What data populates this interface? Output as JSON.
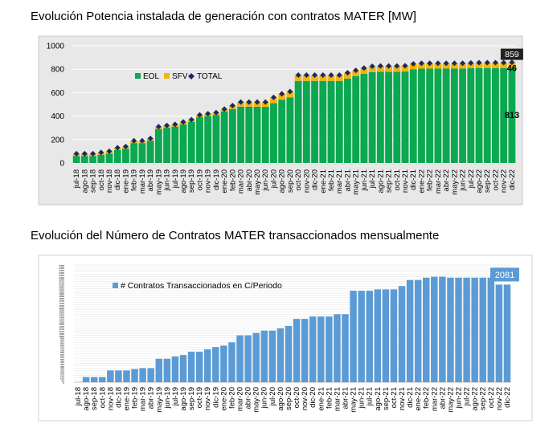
{
  "chart_data": [
    {
      "type": "bar",
      "title": "Evolución Potencia instalada de generación con contratos MATER [MW]",
      "stacked": true,
      "categories": [
        "jul-18",
        "ago-18",
        "sep-18",
        "oct-18",
        "nov-18",
        "dic-18",
        "ene-19",
        "feb-19",
        "mar-19",
        "abr-19",
        "may-19",
        "jun-19",
        "jul-19",
        "ago-19",
        "sep-19",
        "oct-19",
        "nov-19",
        "dic-19",
        "ene-20",
        "feb-20",
        "mar-20",
        "abr-20",
        "may-20",
        "jun-20",
        "jul-20",
        "ago-20",
        "sep-20",
        "oct-20",
        "nov-20",
        "dic-20",
        "ene-21",
        "feb-21",
        "mar-21",
        "abr-21",
        "may-21",
        "jun-21",
        "jul-21",
        "ago-21",
        "sep-21",
        "oct-21",
        "nov-21",
        "dic-21",
        "ene-22",
        "feb-22",
        "mar-22",
        "abr-22",
        "may-22",
        "jun-22",
        "jul-22",
        "ago-22",
        "sep-22",
        "oct-22",
        "nov-22",
        "dic-22"
      ],
      "series": [
        {
          "name": "EOL",
          "color": "#0aa84f",
          "values": [
            60,
            60,
            60,
            70,
            80,
            110,
            120,
            170,
            170,
            190,
            290,
            300,
            310,
            330,
            350,
            390,
            400,
            410,
            440,
            460,
            480,
            480,
            480,
            480,
            510,
            540,
            560,
            700,
            700,
            700,
            700,
            700,
            700,
            720,
            740,
            760,
            775,
            778,
            778,
            778,
            780,
            800,
            805,
            805,
            805,
            805,
            805,
            805,
            808,
            810,
            810,
            810,
            810,
            813
          ]
        },
        {
          "name": "SFV",
          "color": "#f2b40f",
          "values": [
            20,
            20,
            20,
            20,
            20,
            20,
            20,
            20,
            20,
            20,
            20,
            20,
            20,
            20,
            20,
            20,
            20,
            20,
            20,
            30,
            40,
            40,
            40,
            40,
            50,
            50,
            50,
            50,
            50,
            50,
            50,
            50,
            50,
            50,
            50,
            50,
            50,
            50,
            50,
            50,
            50,
            46,
            46,
            46,
            46,
            46,
            46,
            46,
            46,
            46,
            46,
            46,
            46,
            46
          ]
        },
        {
          "name": "TOTAL",
          "color": "#1c2a5c",
          "values": [
            80,
            80,
            80,
            90,
            100,
            130,
            140,
            190,
            190,
            210,
            310,
            320,
            330,
            350,
            370,
            410,
            420,
            430,
            460,
            490,
            520,
            520,
            520,
            520,
            560,
            590,
            610,
            750,
            750,
            750,
            750,
            750,
            750,
            770,
            790,
            810,
            825,
            828,
            828,
            828,
            830,
            846,
            851,
            851,
            851,
            851,
            851,
            851,
            854,
            856,
            856,
            856,
            856,
            859
          ]
        }
      ],
      "ylim": [
        0,
        1000
      ],
      "yticks": [
        0,
        200,
        400,
        600,
        800,
        1000
      ],
      "grid": true,
      "legend_position": "left, inside plot",
      "data_labels": {
        "total_last": "859",
        "sfv_last": "46",
        "eol_last": "813"
      }
    },
    {
      "type": "bar",
      "title": "Evolución del Número de Contratos MATER transaccionados mensualmente",
      "categories": [
        "jul-18",
        "ago-18",
        "sep-18",
        "oct-18",
        "nov-18",
        "dic-18",
        "ene-19",
        "feb-19",
        "mar-19",
        "abr-19",
        "may-19",
        "jun-19",
        "jul-19",
        "ago-19",
        "sep-19",
        "oct-19",
        "nov-19",
        "dic-19",
        "ene-20",
        "feb-20",
        "mar-20",
        "abr-20",
        "may-20",
        "jun-20",
        "jul-20",
        "ago-20",
        "sep-20",
        "oct-20",
        "nov-20",
        "dic-20",
        "ene-21",
        "feb-21",
        "mar-21",
        "abr-21",
        "may-21",
        "jun-21",
        "jul-21",
        "ago-21",
        "sep-21",
        "oct-21",
        "nov-21",
        "dic-21",
        "ene-22",
        "feb-22",
        "mar-22",
        "abr-22",
        "may-22",
        "jun-22",
        "jul-22",
        "ago-22",
        "sep-22",
        "oct-22",
        "nov-22",
        "dic-22"
      ],
      "series": [
        {
          "name": "# Contratos Transaccionados en C/Periodo",
          "color": "#5b9bd5",
          "values": [
            0,
            110,
            110,
            110,
            250,
            250,
            250,
            280,
            300,
            300,
            500,
            500,
            550,
            580,
            650,
            650,
            700,
            750,
            780,
            850,
            1000,
            1000,
            1050,
            1100,
            1100,
            1150,
            1200,
            1350,
            1350,
            1400,
            1400,
            1400,
            1450,
            1450,
            1950,
            1950,
            1950,
            1980,
            1980,
            1980,
            2050,
            2180,
            2180,
            2230,
            2250,
            2250,
            2230,
            2230,
            2230,
            2230,
            2230,
            2230,
            2081,
            2081
          ]
        }
      ],
      "ylim": [
        0,
        2500
      ],
      "yticks": [
        0,
        50,
        100,
        150,
        200,
        250,
        300,
        350,
        400,
        450,
        500,
        550,
        600,
        650,
        700,
        750,
        800,
        850,
        900,
        950,
        1000,
        1050,
        1100,
        1150,
        1200,
        1250,
        1300,
        1350,
        1400,
        1450,
        1500,
        1550,
        1600,
        1650,
        1700,
        1750,
        1800,
        1850,
        1900,
        1950,
        2000,
        2050,
        2100,
        2150,
        2200,
        2250,
        2300,
        2350,
        2400,
        2450,
        2500
      ],
      "ytick_labels": [
        "0",
        "50",
        "100",
        "150",
        "200",
        "250",
        "300",
        "350",
        "400",
        "450",
        "500",
        "550",
        "600",
        "650",
        "700",
        "750",
        "800",
        "850",
        "900",
        "950",
        "1000",
        "1050",
        "1100",
        "1150",
        "1200",
        "1250",
        "1300",
        "1350",
        "1400",
        "1450",
        "1500",
        "1550",
        "1600",
        "1650",
        "1700",
        "1750",
        "1800",
        "1850",
        "1900",
        "1950",
        "2000",
        "2050",
        "2100",
        "2150",
        "2200",
        "2250",
        "2300",
        "2350",
        "2400",
        "2450",
        "2500"
      ],
      "grid": true,
      "legend_position": "top-left, inside plot",
      "data_labels": {
        "last": "2081"
      }
    }
  ]
}
